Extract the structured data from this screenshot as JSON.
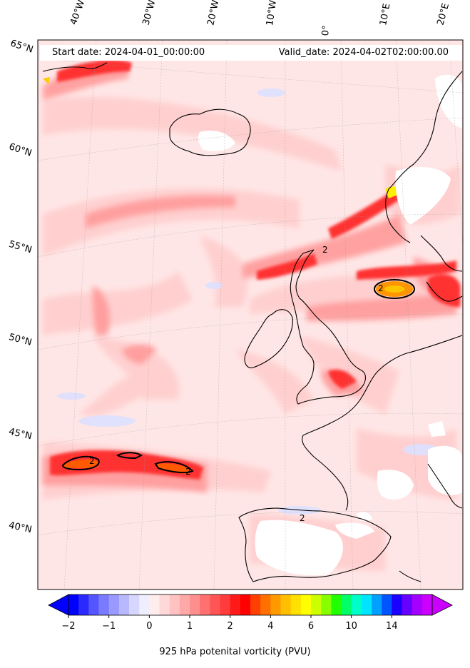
{
  "header": {
    "start_date": "Start date: 2024-04-01_00:00:00",
    "valid_date": "Valid_date: 2024-04-02T02:00:00.00"
  },
  "lon_labels": [
    "40°W",
    "30°W",
    "20°W",
    "10°W",
    "0°",
    "10°E",
    "20°E"
  ],
  "lat_labels": [
    "65°N",
    "60°N",
    "55°N",
    "50°N",
    "45°N",
    "40°N"
  ],
  "contour_label": "2",
  "colorbar": {
    "title": "925 hPa potenital vorticity (PVU)",
    "ticks": [
      "−2",
      "−1",
      "0",
      "1",
      "2",
      "4",
      "6",
      "10",
      "14"
    ],
    "colors": [
      "#0000ff",
      "#2a2aff",
      "#5555ff",
      "#7a7aff",
      "#9999ff",
      "#b8b8ff",
      "#d6d6ff",
      "#eeeeff",
      "#ffecec",
      "#ffd9d9",
      "#ffc2c2",
      "#ffa8a8",
      "#ff8f8f",
      "#ff7070",
      "#ff5555",
      "#ff3b3b",
      "#ff1a1a",
      "#ff0000",
      "#ff4000",
      "#ff7000",
      "#ff9900",
      "#ffbf00",
      "#ffe000",
      "#ffff00",
      "#ccff00",
      "#88ff00",
      "#22ff00",
      "#00ff66",
      "#00ffc8",
      "#00e5ff",
      "#00a0ff",
      "#0055ff",
      "#1a00ff",
      "#6600ff",
      "#a300ff",
      "#cc00ff"
    ],
    "min_color": "#0000ff",
    "max_color": "#cc00ff"
  }
}
